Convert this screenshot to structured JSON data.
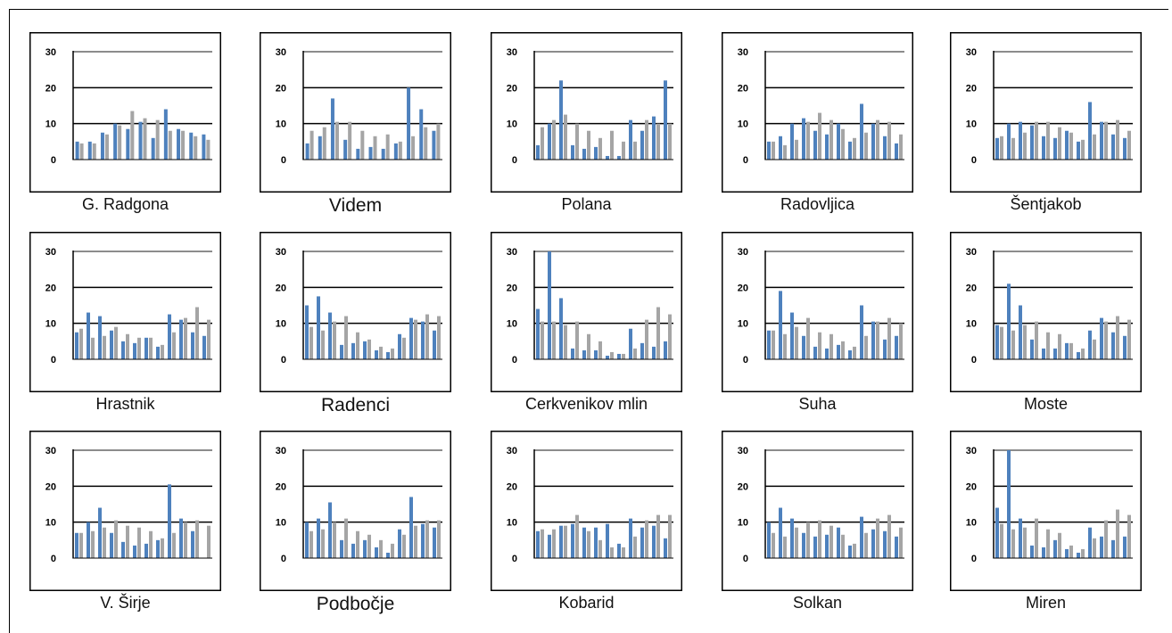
{
  "chart_data": [
    {
      "type": "bar",
      "title": "G. Radgona",
      "ylim": [
        0,
        30
      ],
      "yticks": [
        0,
        10,
        20,
        30
      ],
      "series": [
        {
          "color": "#4e81bd",
          "values": [
            5,
            5,
            7.5,
            10,
            8.5,
            10.5,
            6,
            14,
            8.5,
            7.5,
            7
          ]
        },
        {
          "color": "#a5a5a5",
          "values": [
            4.5,
            4.5,
            7,
            9.5,
            13.5,
            11.5,
            11,
            8,
            8,
            6.5,
            5.5
          ]
        }
      ]
    },
    {
      "type": "bar",
      "title": "Videm",
      "ylim": [
        0,
        30
      ],
      "yticks": [
        0,
        10,
        20,
        30
      ],
      "series": [
        {
          "color": "#4e81bd",
          "values": [
            4.5,
            6.5,
            17,
            5.5,
            3,
            3.5,
            3,
            4.5,
            20,
            14,
            8
          ]
        },
        {
          "color": "#a5a5a5",
          "values": [
            8,
            9,
            10.5,
            10.5,
            8,
            6.5,
            7,
            5,
            6.5,
            9,
            10
          ]
        }
      ]
    },
    {
      "type": "bar",
      "title": "Polana",
      "ylim": [
        0,
        30
      ],
      "yticks": [
        0,
        10,
        20,
        30
      ],
      "series": [
        {
          "color": "#4e81bd",
          "values": [
            4,
            10,
            22,
            4,
            3,
            3.5,
            1,
            1,
            11,
            8,
            12,
            22
          ]
        },
        {
          "color": "#a5a5a5",
          "values": [
            9,
            11,
            12.5,
            10,
            8,
            6,
            8,
            5,
            5,
            11,
            10,
            10
          ]
        }
      ]
    },
    {
      "type": "bar",
      "title": "Radovljica",
      "ylim": [
        0,
        30
      ],
      "yticks": [
        0,
        10,
        20,
        30
      ],
      "series": [
        {
          "color": "#4e81bd",
          "values": [
            5,
            6.5,
            10,
            11.5,
            8,
            7,
            10,
            5,
            15.5,
            10,
            6.5,
            4.5
          ]
        },
        {
          "color": "#a5a5a5",
          "values": [
            5,
            4,
            5.5,
            10.5,
            13,
            11,
            8.5,
            6,
            7.5,
            11,
            10.5,
            7
          ]
        }
      ]
    },
    {
      "type": "bar",
      "title": "Šentjakob",
      "ylim": [
        0,
        30
      ],
      "yticks": [
        0,
        10,
        20,
        30
      ],
      "series": [
        {
          "color": "#4e81bd",
          "values": [
            6,
            10,
            10.5,
            9.5,
            6.5,
            6,
            8,
            5,
            16,
            10.5,
            7,
            6
          ]
        },
        {
          "color": "#a5a5a5",
          "values": [
            6.5,
            6,
            7.5,
            10.5,
            10.5,
            9,
            7.5,
            5.5,
            7,
            10.5,
            11,
            8
          ]
        }
      ]
    },
    {
      "type": "bar",
      "title": "Hrastnik",
      "ylim": [
        0,
        30
      ],
      "yticks": [
        0,
        10,
        20,
        30
      ],
      "series": [
        {
          "color": "#4e81bd",
          "values": [
            7.5,
            13,
            12,
            8,
            5,
            4.5,
            6,
            3.5,
            12.5,
            11,
            7.5,
            6.5
          ]
        },
        {
          "color": "#a5a5a5",
          "values": [
            8.5,
            6,
            6.5,
            9,
            7,
            6,
            6,
            4,
            7.5,
            11.5,
            14.5,
            11
          ]
        }
      ]
    },
    {
      "type": "bar",
      "title": "Radenci",
      "ylim": [
        0,
        30
      ],
      "yticks": [
        0,
        10,
        20,
        30
      ],
      "series": [
        {
          "color": "#4e81bd",
          "values": [
            15,
            17.5,
            13,
            4,
            4.5,
            5,
            2.5,
            2,
            7,
            11.5,
            10.5,
            8
          ]
        },
        {
          "color": "#a5a5a5",
          "values": [
            9,
            8,
            10.5,
            12,
            7.5,
            5.5,
            3.5,
            3,
            6,
            11,
            12.5,
            12
          ]
        }
      ]
    },
    {
      "type": "bar",
      "title": "Cerkvenikov mlin",
      "ylim": [
        0,
        30
      ],
      "yticks": [
        0,
        10,
        20,
        30
      ],
      "series": [
        {
          "color": "#4e81bd",
          "values": [
            14,
            30,
            17,
            3,
            2.5,
            2.5,
            1,
            1.5,
            8.5,
            4.5,
            3.5,
            5
          ]
        },
        {
          "color": "#a5a5a5",
          "values": [
            10.5,
            10.5,
            9.5,
            10.5,
            7,
            5,
            2,
            1.5,
            3,
            11,
            14.5,
            12.5
          ]
        }
      ]
    },
    {
      "type": "bar",
      "title": "Suha",
      "ylim": [
        0,
        30
      ],
      "yticks": [
        0,
        10,
        20,
        30
      ],
      "series": [
        {
          "color": "#4e81bd",
          "values": [
            8,
            19,
            13,
            6.5,
            3.5,
            3,
            4,
            2.5,
            15,
            10.5,
            5.5,
            6.5
          ]
        },
        {
          "color": "#a5a5a5",
          "values": [
            8,
            7,
            9,
            11.5,
            7.5,
            7,
            5,
            3.5,
            6.5,
            10.5,
            11.5,
            10
          ]
        }
      ]
    },
    {
      "type": "bar",
      "title": "Moste",
      "ylim": [
        0,
        30
      ],
      "yticks": [
        0,
        10,
        20,
        30
      ],
      "series": [
        {
          "color": "#4e81bd",
          "values": [
            9.5,
            21,
            15,
            5.5,
            3,
            3,
            4.5,
            2,
            8,
            11.5,
            7.5,
            6.5
          ]
        },
        {
          "color": "#a5a5a5",
          "values": [
            9,
            8,
            9.5,
            10.5,
            7.5,
            7,
            4.5,
            3,
            5.5,
            10.5,
            12,
            11
          ]
        }
      ]
    },
    {
      "type": "bar",
      "title": "V. Širje",
      "ylim": [
        0,
        30
      ],
      "yticks": [
        0,
        10,
        20,
        30
      ],
      "series": [
        {
          "color": "#4e81bd",
          "values": [
            7,
            10,
            14,
            7,
            4.5,
            3.5,
            4,
            5,
            20.5,
            11,
            7.5
          ]
        },
        {
          "color": "#a5a5a5",
          "values": [
            7,
            7.5,
            8.5,
            10.5,
            9,
            8.5,
            7.5,
            5.5,
            7,
            10,
            10.5,
            9
          ]
        }
      ]
    },
    {
      "type": "bar",
      "title": "Podbočje",
      "ylim": [
        0,
        30
      ],
      "yticks": [
        0,
        10,
        20,
        30
      ],
      "series": [
        {
          "color": "#4e81bd",
          "values": [
            10,
            11,
            15.5,
            5,
            4,
            5,
            3,
            1.5,
            8,
            17,
            9.5,
            8.5
          ]
        },
        {
          "color": "#a5a5a5",
          "values": [
            7.5,
            8,
            10,
            11,
            7.5,
            6.5,
            5,
            4,
            6.5,
            9,
            10.5,
            10.5
          ]
        }
      ]
    },
    {
      "type": "bar",
      "title": "Kobarid",
      "ylim": [
        0,
        30
      ],
      "yticks": [
        0,
        10,
        20,
        30
      ],
      "series": [
        {
          "color": "#4e81bd",
          "values": [
            7.5,
            6.5,
            9,
            9.5,
            8.5,
            8.5,
            9.5,
            4,
            11,
            8.5,
            9,
            5.5
          ]
        },
        {
          "color": "#a5a5a5",
          "values": [
            8,
            8,
            9,
            12,
            7.5,
            5,
            3,
            3,
            6,
            10.5,
            12,
            12
          ]
        }
      ]
    },
    {
      "type": "bar",
      "title": "Solkan",
      "ylim": [
        0,
        30
      ],
      "yticks": [
        0,
        10,
        20,
        30
      ],
      "series": [
        {
          "color": "#4e81bd",
          "values": [
            10,
            14,
            11,
            7,
            6,
            6.5,
            8.5,
            3.5,
            11.5,
            8,
            7.5,
            6
          ]
        },
        {
          "color": "#a5a5a5",
          "values": [
            7,
            6,
            8.5,
            10,
            10.5,
            9,
            6.5,
            4,
            7,
            11,
            12,
            8.5
          ]
        }
      ]
    },
    {
      "type": "bar",
      "title": "Miren",
      "ylim": [
        0,
        30
      ],
      "yticks": [
        0,
        10,
        20,
        30
      ],
      "series": [
        {
          "color": "#4e81bd",
          "values": [
            14,
            31,
            11,
            3.5,
            3,
            5,
            2.5,
            1.5,
            8.5,
            6,
            5,
            6
          ]
        },
        {
          "color": "#a5a5a5",
          "values": [
            9.5,
            8,
            8.5,
            11,
            8,
            7,
            3.5,
            2.5,
            5.5,
            10.5,
            13.5,
            12
          ]
        }
      ]
    }
  ]
}
